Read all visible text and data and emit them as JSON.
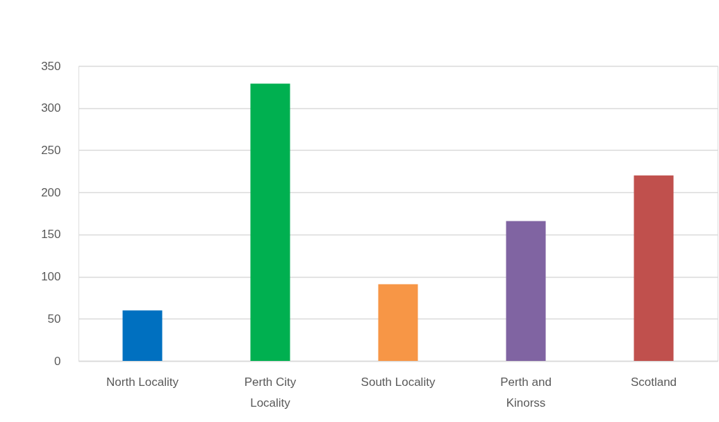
{
  "chart_data": {
    "type": "bar",
    "categories": [
      "North Locality",
      "Perth City Locality",
      "South Locality",
      "Perth and Kinorss",
      "Scotland"
    ],
    "values": [
      60,
      329,
      91,
      166,
      220
    ],
    "colors": [
      "#0070c0",
      "#00b050",
      "#f79646",
      "#8064a2",
      "#c0504d"
    ],
    "ylim": [
      0,
      350
    ],
    "yticks": [
      0,
      50,
      100,
      150,
      200,
      250,
      300,
      350
    ],
    "grid": "y"
  }
}
